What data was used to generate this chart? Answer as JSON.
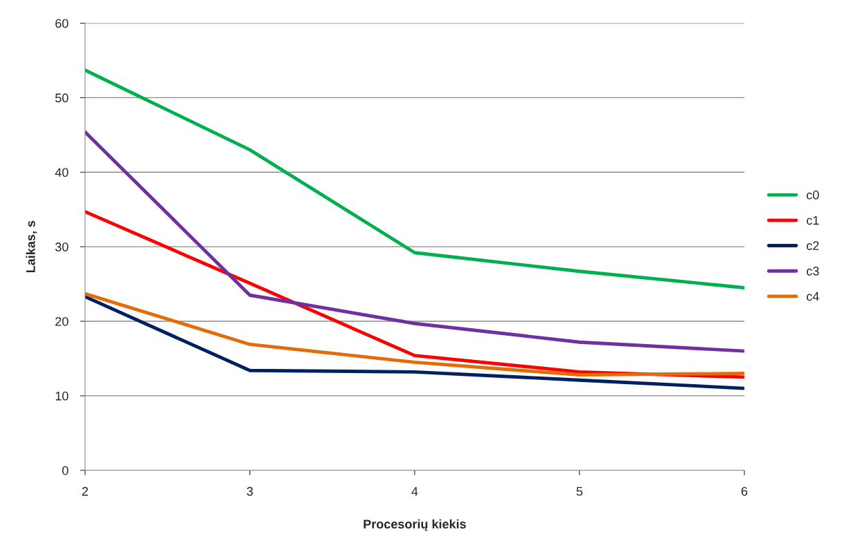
{
  "chart_data": {
    "type": "line",
    "xlabel": "Procesorių kiekis",
    "ylabel": "Laikas, s",
    "x": [
      2,
      3,
      4,
      5,
      6
    ],
    "xlim": [
      2,
      6
    ],
    "xticks": [
      2,
      3,
      4,
      5,
      6
    ],
    "ylim": [
      0,
      60
    ],
    "yticks": [
      0,
      10,
      20,
      30,
      40,
      50,
      60
    ],
    "grid": "y",
    "legend": "right",
    "marker": "none",
    "line_style": "solid",
    "series": [
      {
        "name": "c0",
        "color": "#00b050",
        "values": [
          53.7,
          43.0,
          29.2,
          26.7,
          24.5
        ]
      },
      {
        "name": "c1",
        "color": "#ff0000",
        "values": [
          34.7,
          25.1,
          15.4,
          13.2,
          12.5
        ]
      },
      {
        "name": "c2",
        "color": "#002060",
        "values": [
          23.3,
          13.4,
          13.2,
          12.1,
          11.0
        ]
      },
      {
        "name": "c3",
        "color": "#7030a0",
        "values": [
          45.4,
          23.5,
          19.7,
          17.2,
          16.0
        ]
      },
      {
        "name": "c4",
        "color": "#e36c09",
        "values": [
          23.7,
          16.9,
          14.5,
          12.8,
          13.0
        ]
      }
    ]
  }
}
